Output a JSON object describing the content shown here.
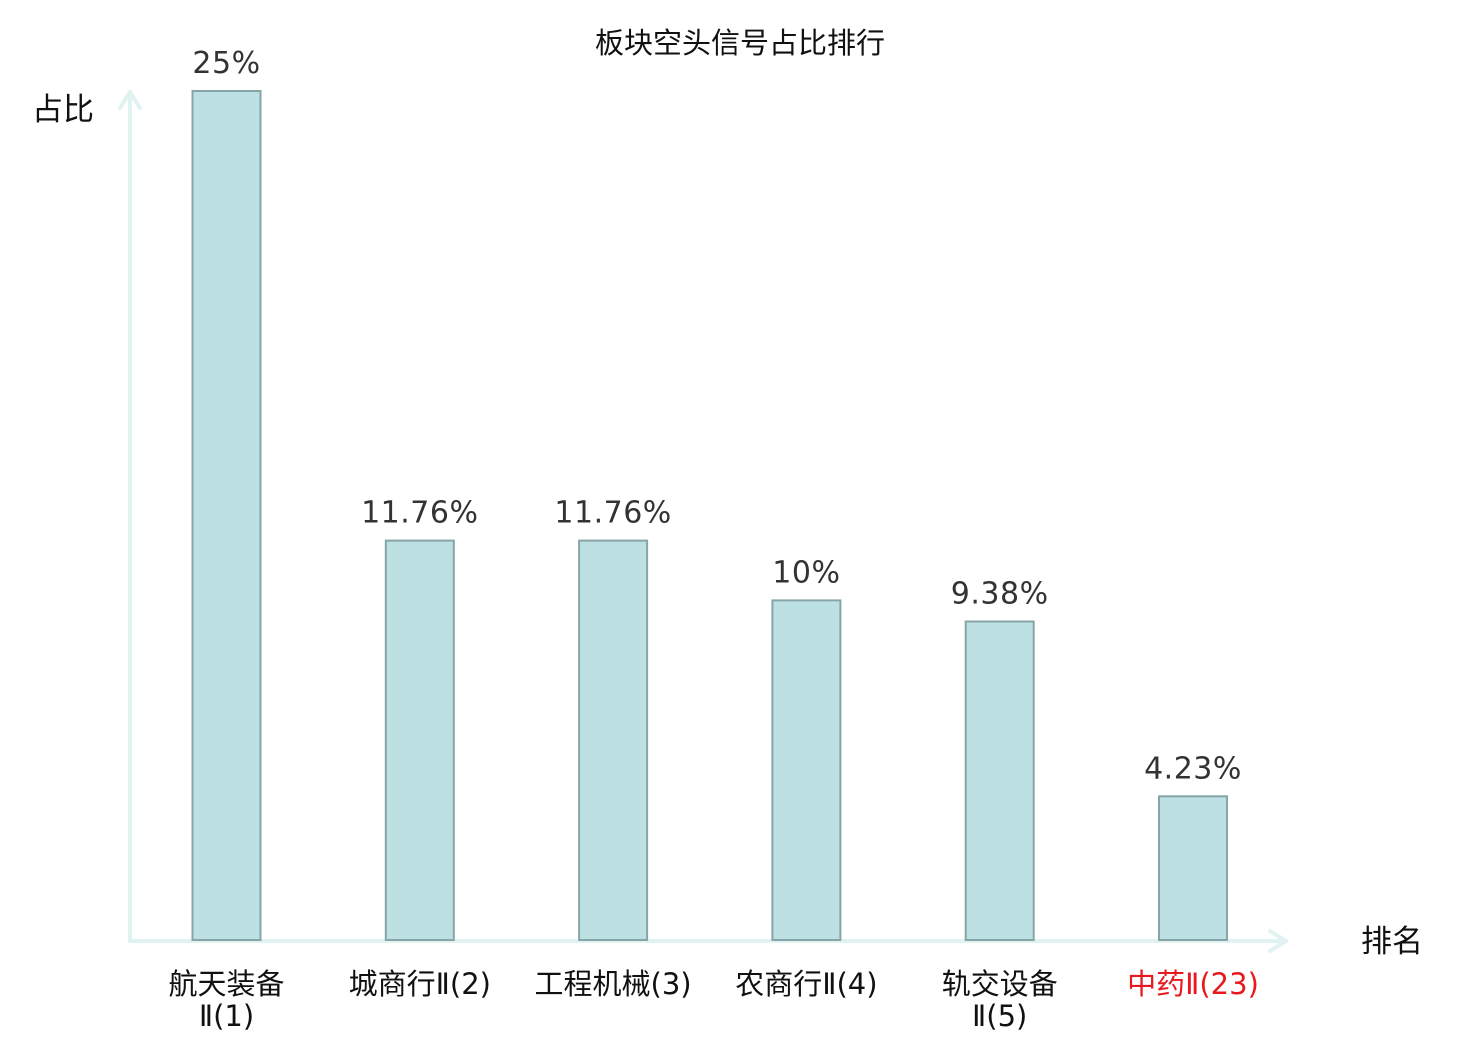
{
  "chart_data": {
    "type": "bar",
    "title": "板块空头信号占比排行",
    "ylabel": "占比",
    "xlabel": "排名",
    "ylim": [
      0,
      25
    ],
    "grid": false,
    "categories": [
      {
        "label": "航天装备Ⅱ(1)",
        "lines": [
          "航天装备",
          "Ⅱ(1)"
        ],
        "highlight": false
      },
      {
        "label": "城商行Ⅱ(2)",
        "lines": [
          "城商行Ⅱ(2)"
        ],
        "highlight": false
      },
      {
        "label": "工程机械(3)",
        "lines": [
          "工程机械(3)"
        ],
        "highlight": false
      },
      {
        "label": "农商行Ⅱ(4)",
        "lines": [
          "农商行Ⅱ(4)"
        ],
        "highlight": false
      },
      {
        "label": "轨交设备Ⅱ(5)",
        "lines": [
          "轨交设备",
          "Ⅱ(5)"
        ],
        "highlight": false
      },
      {
        "label": "中药Ⅱ(23)",
        "lines": [
          "中药Ⅱ(23)"
        ],
        "highlight": true
      }
    ],
    "values": [
      25,
      11.76,
      11.76,
      10,
      9.38,
      4.23
    ],
    "value_labels": [
      "25%",
      "11.76%",
      "11.76%",
      "10%",
      "9.38%",
      "4.23%"
    ],
    "colors": {
      "bar_fill": "#bde0e3",
      "bar_stroke": "#87a5a9",
      "axis": "#e0f3f1",
      "highlight_text": "#e8191e",
      "text": "#111111"
    }
  }
}
